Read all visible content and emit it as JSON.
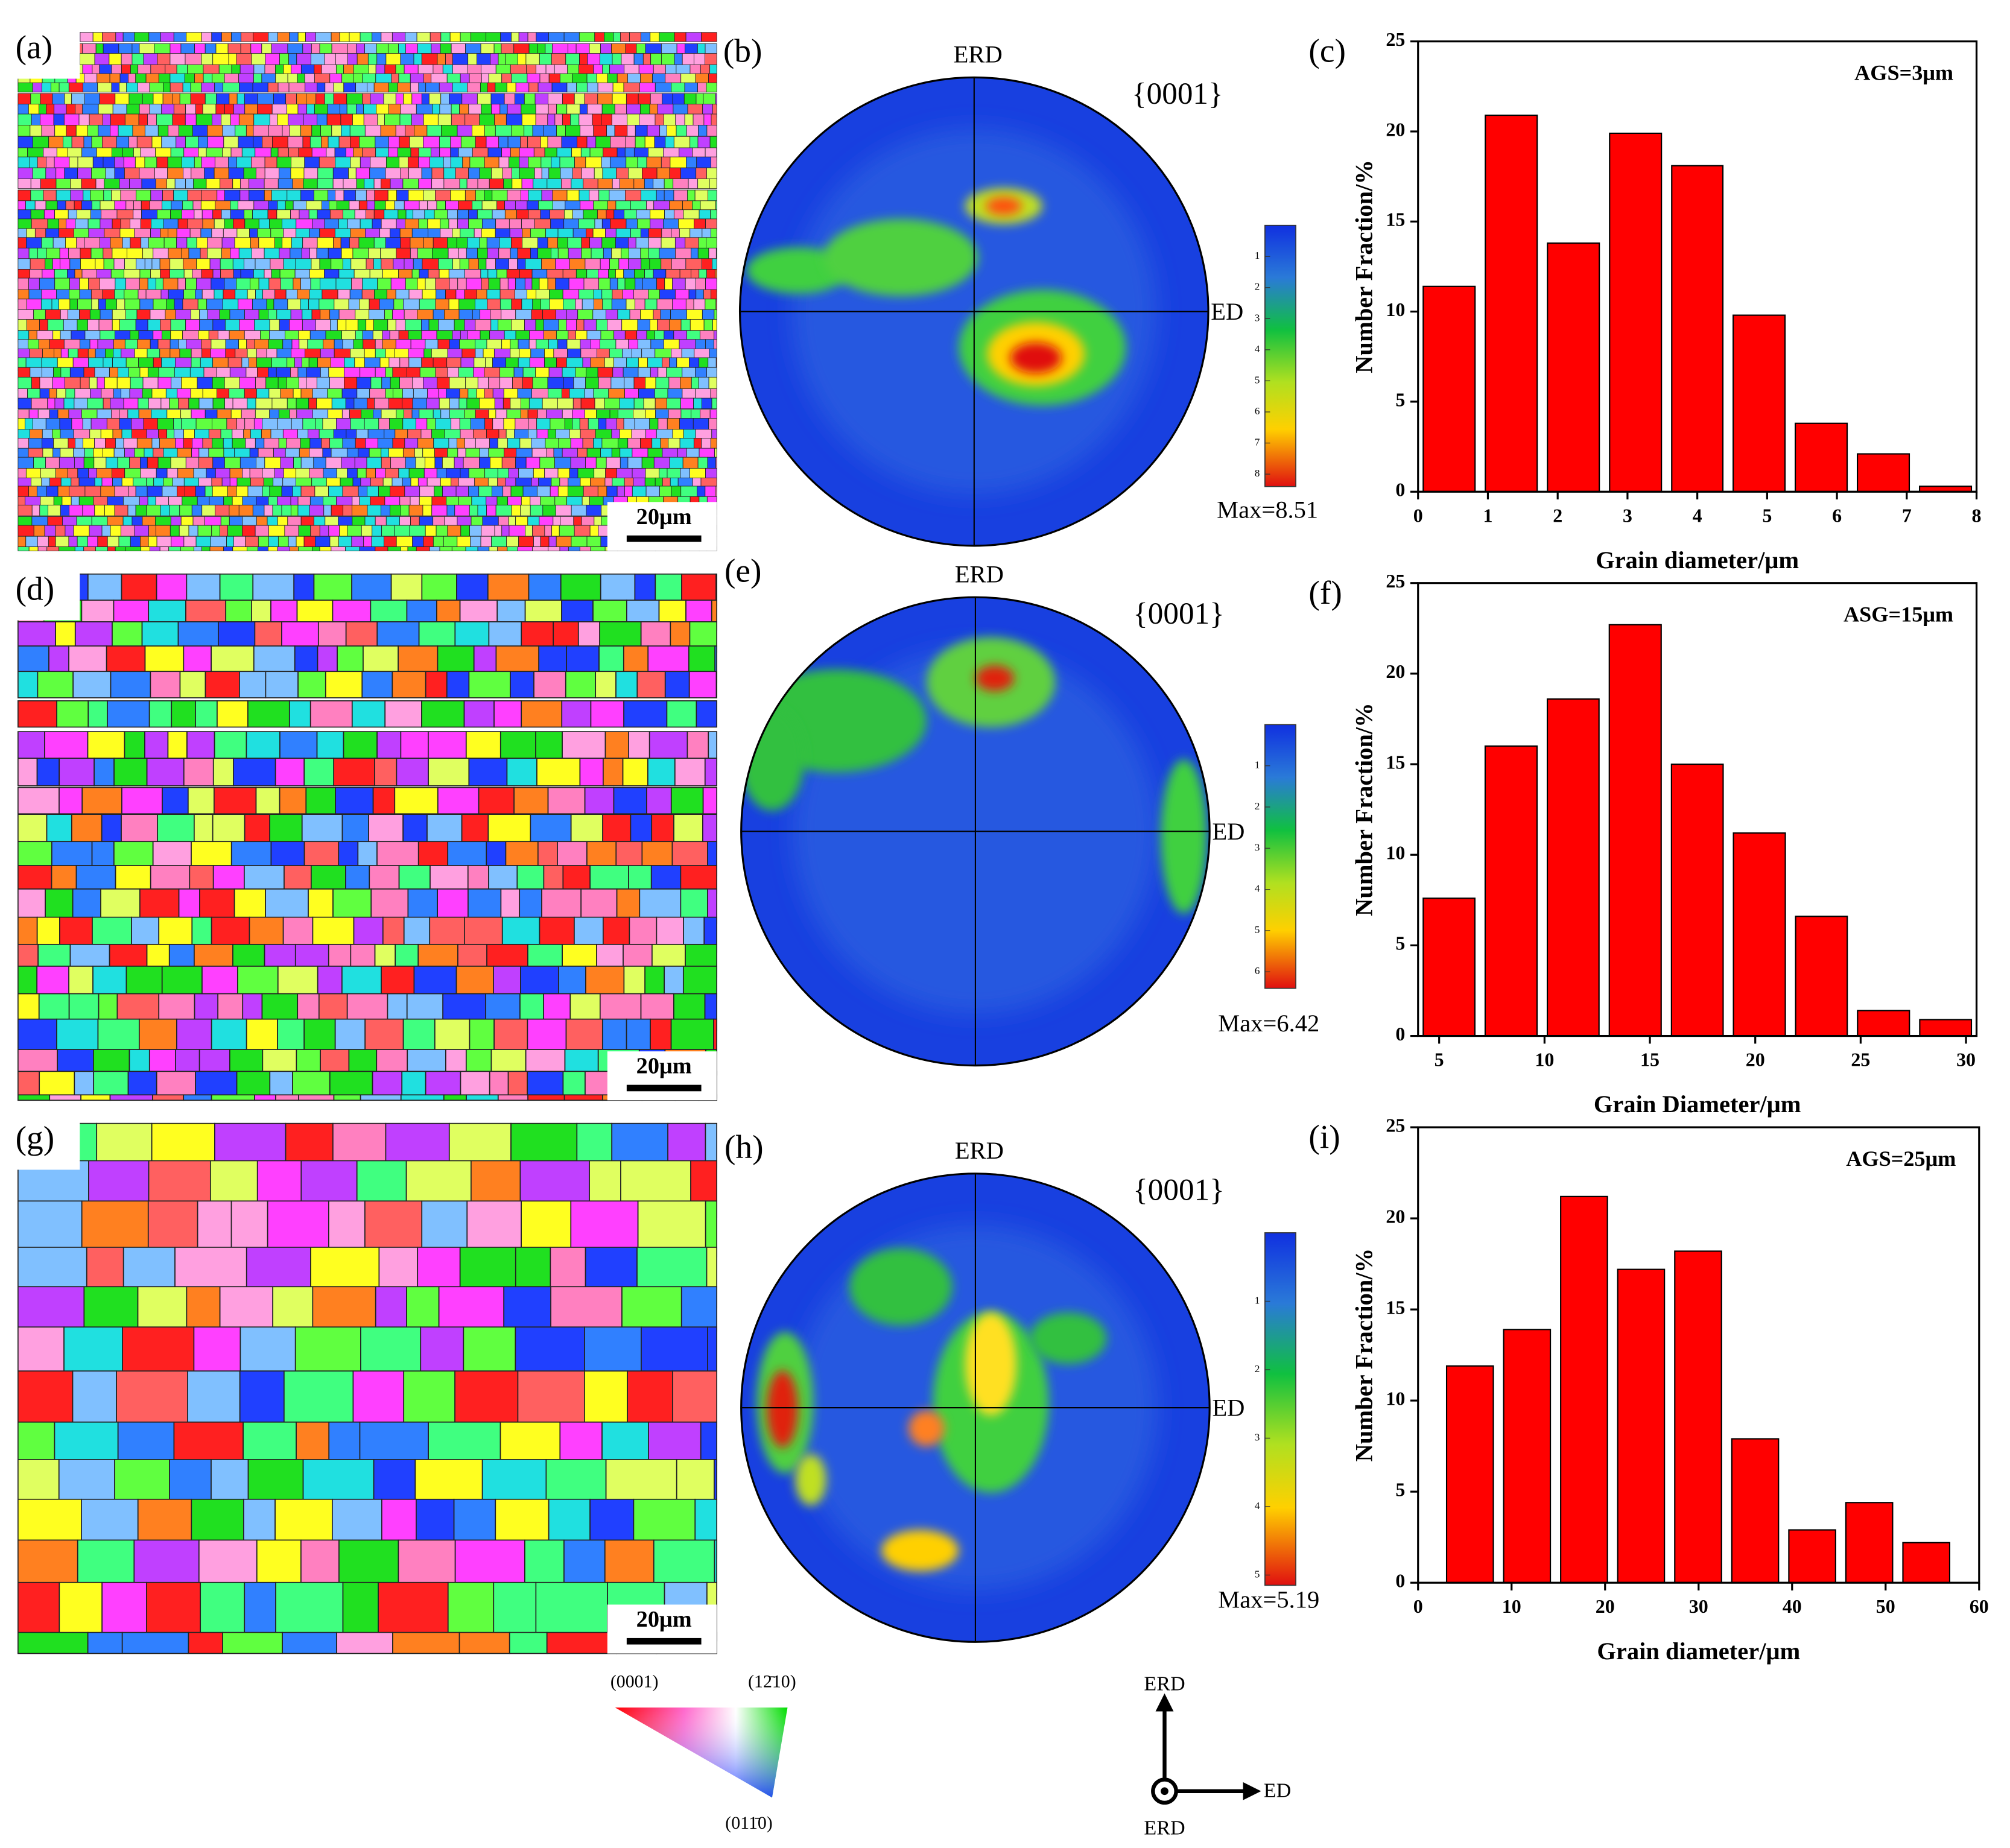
{
  "chart_data": [
    {
      "type": "histogram",
      "label": "(c)",
      "annotation": "AGS=3μm",
      "xlabel": "Grain diameter/μm",
      "ylabel": "Number Fraction/%",
      "color": "#ff0000",
      "bins": [
        0,
        0.89,
        1.78,
        2.67,
        3.56,
        4.44,
        5.33,
        6.22,
        7.11,
        8
      ],
      "values": [
        11.4,
        20.9,
        13.8,
        19.9,
        18.1,
        9.8,
        3.8,
        2.1,
        0.3
      ],
      "xlim": [
        0,
        8
      ],
      "xticks": [
        0,
        1,
        2,
        3,
        4,
        5,
        6,
        7,
        8
      ],
      "ylim": [
        0,
        25
      ],
      "yticks": [
        0,
        5,
        10,
        15,
        20,
        25
      ]
    },
    {
      "type": "histogram",
      "label": "(f)",
      "annotation": "ASG=15μm",
      "xlabel": "Grain Diameter/μm",
      "ylabel": "Number Fraction/%",
      "color": "#ff0000",
      "bins": [
        4,
        6.94,
        9.89,
        12.83,
        15.78,
        18.72,
        21.67,
        24.61,
        27.56,
        30.5
      ],
      "values": [
        7.6,
        16,
        18.6,
        22.7,
        15,
        11.2,
        6.6,
        1.4,
        0.9
      ],
      "xlim": [
        4,
        30.5
      ],
      "xticks": [
        5,
        10,
        15,
        20,
        25,
        30
      ],
      "ylim": [
        0,
        25
      ],
      "yticks": [
        0,
        5,
        10,
        15,
        20,
        25
      ]
    },
    {
      "type": "histogram",
      "label": "(i)",
      "annotation": "AGS=25μm",
      "xlabel": "Grain diameter/μm",
      "ylabel": "Number Fraction/%",
      "color": "#ff0000",
      "bins": [
        2.5,
        8.6,
        14.7,
        20.8,
        26.9,
        33,
        39.1,
        45.2,
        51.3,
        57.4
      ],
      "values": [
        11.9,
        13.9,
        21.2,
        17.2,
        18.2,
        7.9,
        2.9,
        4.4,
        2.2
      ],
      "xlim": [
        0,
        60
      ],
      "xticks": [
        0,
        10,
        20,
        30,
        40,
        50,
        60
      ],
      "ylim": [
        0,
        25
      ],
      "yticks": [
        0,
        5,
        10,
        15,
        20,
        25
      ]
    }
  ],
  "maps": [
    {
      "label": "(a)",
      "scale_bar": "20μm"
    },
    {
      "label": "(d)",
      "scale_bar": "20μm"
    },
    {
      "label": "(g)",
      "scale_bar": "20μm"
    }
  ],
  "pole_figures": [
    {
      "label": "(b)",
      "top": "ERD",
      "right": "ED",
      "plane": "{0001}",
      "max_label": "Max=8.51",
      "clim": [
        0,
        8.4
      ],
      "colorbar_ticks": [
        1,
        2,
        3,
        4,
        5,
        6,
        7,
        8
      ]
    },
    {
      "label": "(e)",
      "top": "ERD",
      "right": "ED",
      "plane": "{0001}",
      "max_label": "Max=6.42",
      "clim": [
        0,
        6.4
      ],
      "colorbar_ticks": [
        1,
        2,
        3,
        4,
        5,
        6
      ]
    },
    {
      "label": "(h)",
      "top": "ERD",
      "right": "ED",
      "plane": "{0001}",
      "max_label": "Max=5.19",
      "clim": [
        0,
        5.15
      ],
      "colorbar_ticks": [
        1,
        2,
        3,
        4,
        5
      ]
    }
  ],
  "ipf_key": {
    "labels": [
      "(0001)",
      "(12̄10)",
      "(011̄0)"
    ]
  },
  "axes_key": {
    "up": "ERD",
    "right": "ED",
    "out": "ERD"
  }
}
